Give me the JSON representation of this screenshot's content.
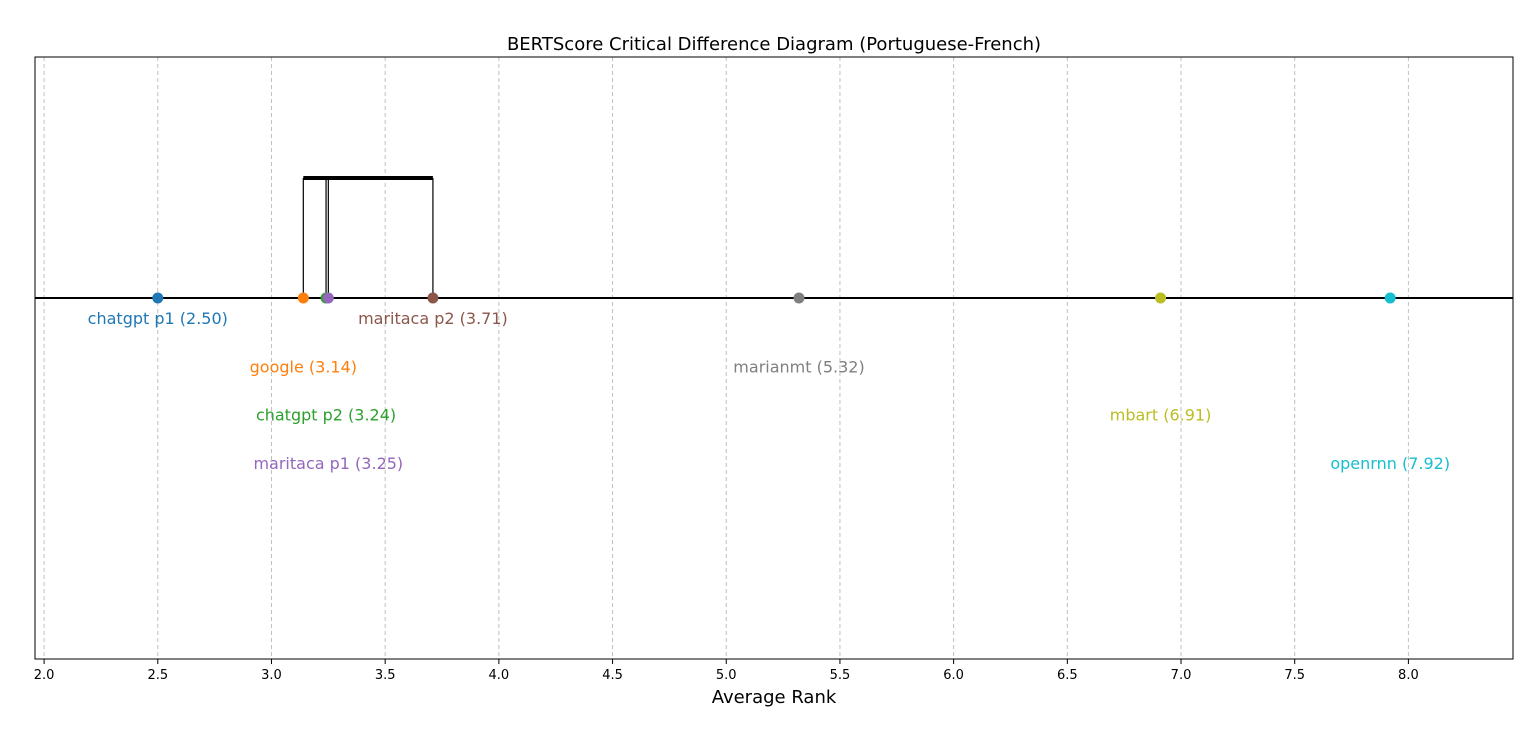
{
  "chart_data": {
    "type": "scatter",
    "title": "BERTScore Critical Difference Diagram (Portuguese-French)",
    "xlabel": "Average Rank",
    "xlim": [
      1.96,
      8.46
    ],
    "xticks": [
      "2.0",
      "2.5",
      "3.0",
      "3.5",
      "4.0",
      "4.5",
      "5.0",
      "5.5",
      "6.0",
      "6.5",
      "7.0",
      "7.5",
      "8.0"
    ],
    "grid": true,
    "series": [
      {
        "name": "chatgpt p1",
        "rank": 2.5,
        "label": "chatgpt p1 (2.50)",
        "color": "#1f77b4"
      },
      {
        "name": "google",
        "rank": 3.14,
        "label": "google (3.14)",
        "color": "#ff7f0e"
      },
      {
        "name": "chatgpt p2",
        "rank": 3.24,
        "label": "chatgpt p2 (3.24)",
        "color": "#2ca02c"
      },
      {
        "name": "maritaca p1",
        "rank": 3.25,
        "label": "maritaca p1 (3.25)",
        "color": "#9467bd"
      },
      {
        "name": "maritaca p2",
        "rank": 3.71,
        "label": "maritaca p2 (3.71)",
        "color": "#8c564b"
      },
      {
        "name": "marianmt",
        "rank": 5.32,
        "label": "marianmt (5.32)",
        "color": "#7f7f7f"
      },
      {
        "name": "mbart",
        "rank": 6.91,
        "label": "mbart (6.91)",
        "color": "#bcbd22"
      },
      {
        "name": "openrnn",
        "rank": 7.92,
        "label": "openrnn (7.92)",
        "color": "#17becf"
      }
    ],
    "cliques": [
      {
        "start": 3.14,
        "end": 3.71,
        "members": [
          3.14,
          3.24,
          3.25,
          3.71
        ]
      }
    ]
  }
}
